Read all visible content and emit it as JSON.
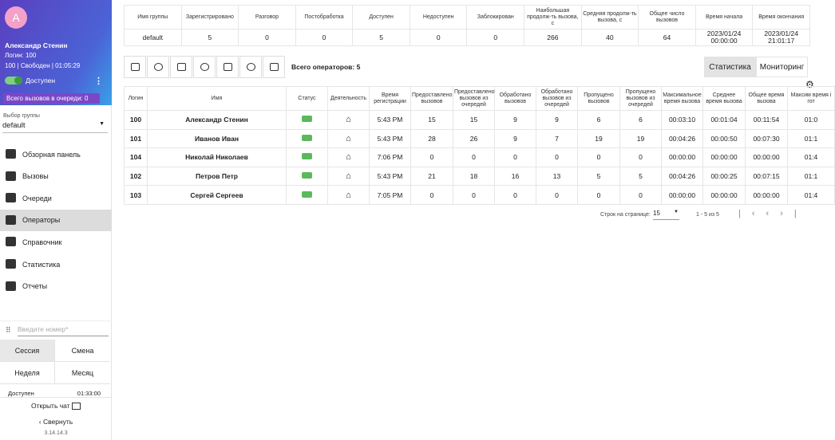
{
  "user": {
    "avatar": "A",
    "name": "Александр Стенин",
    "login": "Логин: 100",
    "status_line": "100 | Свободен | 01:05:29",
    "availability": "Доступен",
    "queue": "Всего вызовов в очереди: 0"
  },
  "group_select": {
    "label": "Выбор группы",
    "value": "default"
  },
  "nav": [
    "Обзорная панель",
    "Вызовы",
    "Очереди",
    "Операторы",
    "Справочник",
    "Статистика",
    "Отчеты"
  ],
  "phone_input": {
    "placeholder": "Введите номер*"
  },
  "period_tabs": [
    "Сессия",
    "Смена",
    "Неделя",
    "Месяц"
  ],
  "period_stat": {
    "label": "Доступен",
    "value": "01:33:00"
  },
  "footer": {
    "chat": "Открыть чат",
    "collapse": "Свернуть",
    "version": "3.14.14.3"
  },
  "summary": {
    "headers": [
      "Имя группы",
      "Зарегистрировано",
      "Разговор",
      "Постобработка",
      "Доступен",
      "Недоступен",
      "Заблокирован",
      "Наибольшая продолж-ть вызова, с",
      "Средняя продолж-ть вызова, с",
      "Общее число вызовов",
      "Время начала",
      "Время окончания"
    ],
    "row": [
      "default",
      5,
      0,
      0,
      5,
      0,
      0,
      266,
      40,
      64,
      "2023/01/24 00:00:00",
      "2023/01/24 21:01:17"
    ]
  },
  "toolbar": {
    "total": "Всего операторов: 5",
    "tabs": [
      "Статистика",
      "Мониторинг"
    ]
  },
  "operators": {
    "headers": [
      "Логин",
      "Имя",
      "Статус",
      "Деятельность",
      "Время регистрации",
      "Предоставлено вызовов",
      "Предоставлено вызовов из очередей",
      "Обработано вызовов",
      "Обработано вызовов из очередей",
      "Пропущено вызовов",
      "Пропущено вызовов из очередей",
      "Максимальное время вызова",
      "Среднее время вызова",
      "Общее время вызова",
      "Максим время і гот"
    ],
    "rows": [
      [
        "100",
        "Александр Стенин",
        "5:43 PM",
        15,
        15,
        9,
        9,
        6,
        6,
        "00:03:10",
        "00:01:04",
        "00:11:54",
        "01:0"
      ],
      [
        "101",
        "Иванов Иван",
        "5:43 PM",
        28,
        26,
        9,
        7,
        19,
        19,
        "00:04:26",
        "00:00:50",
        "00:07:30",
        "01:1"
      ],
      [
        "104",
        "Николай Николаев",
        "7:06 PM",
        0,
        0,
        0,
        0,
        0,
        0,
        "00:00:00",
        "00:00:00",
        "00:00:00",
        "01:4"
      ],
      [
        "102",
        "Петров Петр",
        "5:43 PM",
        21,
        18,
        16,
        13,
        5,
        5,
        "00:04:26",
        "00:00:25",
        "00:07:15",
        "01:1"
      ],
      [
        "103",
        "Сергей Сергеев",
        "7:05 PM",
        0,
        0,
        0,
        0,
        0,
        0,
        "00:00:00",
        "00:00:00",
        "00:00:00",
        "01:4"
      ]
    ]
  },
  "pagination": {
    "rows_label": "Строк на странице:",
    "rows_value": "15",
    "range": "1 - 5 из 5"
  }
}
